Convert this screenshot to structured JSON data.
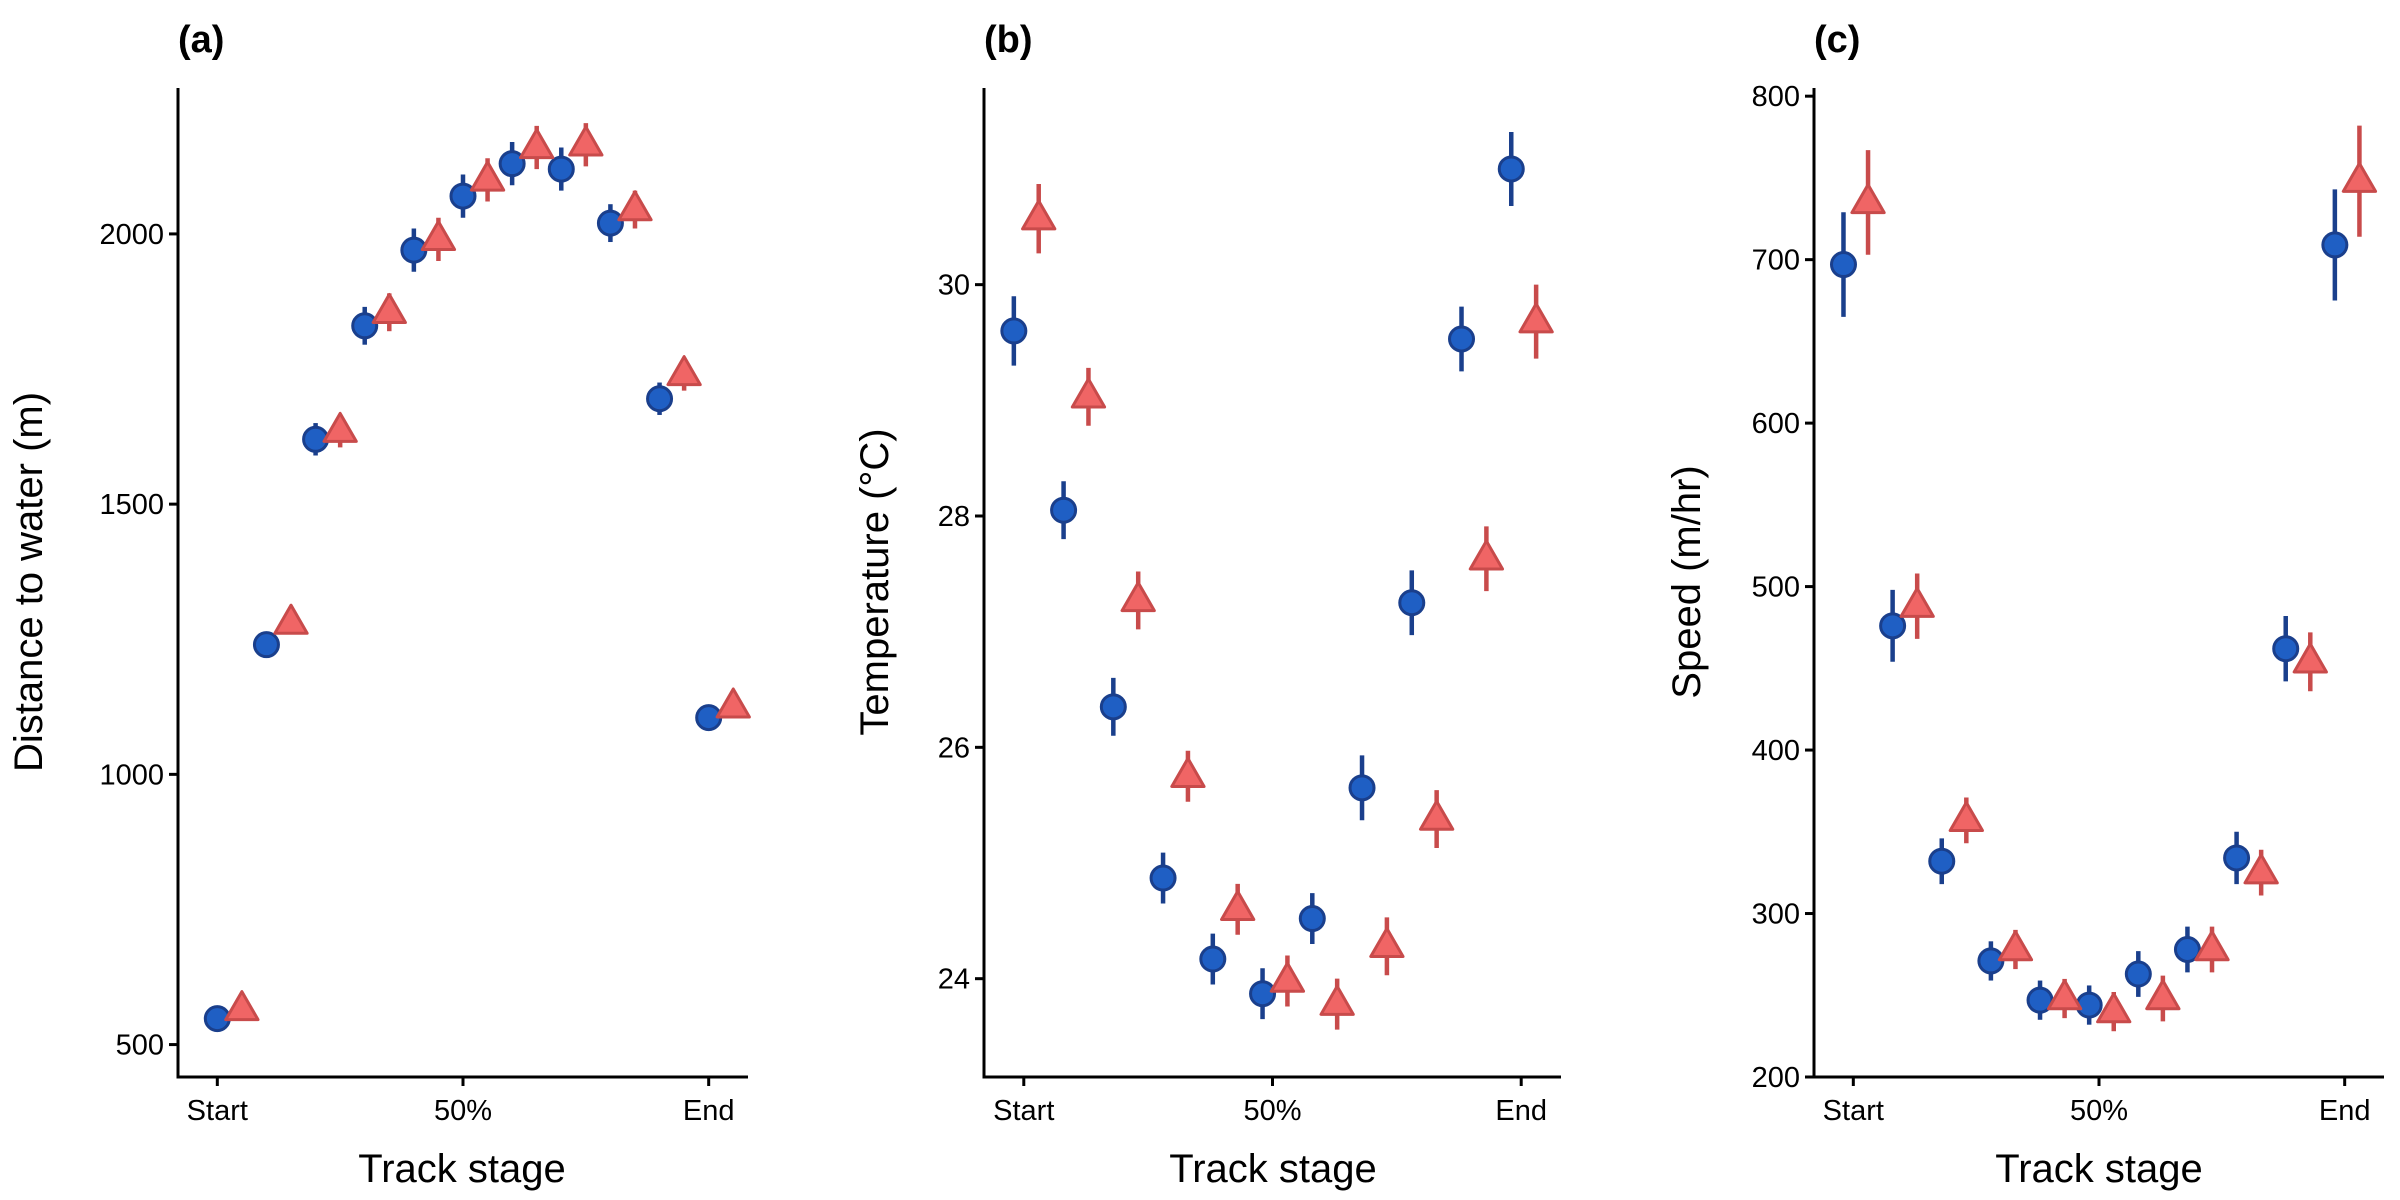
{
  "chart_data": [
    {
      "type": "scatter",
      "panel_label": "(a)",
      "xlabel": "Track stage",
      "ylabel": "Distance to water (m)",
      "x_tick_labels": [
        "Start",
        "50%",
        "End"
      ],
      "x_ticks": [
        0,
        50,
        100
      ],
      "xlim": [
        -8,
        108
      ],
      "ylim": [
        440,
        2270
      ],
      "y_ticks": [
        500,
        1000,
        1500,
        2000
      ],
      "grid": false,
      "legend": "none",
      "series": [
        {
          "marker": "circle",
          "color": "#1f5fc4",
          "edge": "#1a3f8c",
          "x": [
            0,
            10,
            20,
            30,
            40,
            50,
            60,
            70,
            80,
            90,
            100
          ],
          "y": [
            548,
            1240,
            1620,
            1830,
            1970,
            2070,
            2130,
            2120,
            2020,
            1695,
            1105
          ],
          "err": [
            15,
            18,
            30,
            35,
            40,
            40,
            40,
            40,
            35,
            30,
            20
          ]
        },
        {
          "marker": "triangle",
          "color": "#f06565",
          "edge": "#c84b4b",
          "x": [
            5,
            15,
            25,
            35,
            45,
            55,
            65,
            75,
            85,
            95,
            105
          ],
          "y": [
            565,
            1280,
            1635,
            1855,
            1990,
            2100,
            2160,
            2165,
            2045,
            1740,
            1125
          ],
          "err": [
            15,
            18,
            30,
            35,
            40,
            40,
            40,
            40,
            35,
            30,
            20
          ]
        }
      ]
    },
    {
      "type": "scatter",
      "panel_label": "(b)",
      "xlabel": "Track stage",
      "ylabel": "Temperature (°C)",
      "x_tick_labels": [
        "Start",
        "50%",
        "End"
      ],
      "x_ticks": [
        0,
        50,
        100
      ],
      "xlim": [
        -8,
        108
      ],
      "ylim": [
        23.15,
        31.7
      ],
      "y_ticks": [
        24,
        26,
        28,
        30
      ],
      "y_tick_labels": [
        "24",
        "26",
        "28",
        "30"
      ],
      "grid": false,
      "legend": "none",
      "series": [
        {
          "marker": "circle",
          "color": "#1f5fc4",
          "edge": "#1a3f8c",
          "x": [
            -2,
            8,
            18,
            28,
            38,
            48,
            58,
            68,
            78,
            88,
            98
          ],
          "y": [
            29.6,
            28.05,
            26.35,
            24.87,
            24.17,
            23.87,
            24.52,
            25.65,
            27.25,
            29.53,
            31.0
          ],
          "err": [
            0.3,
            0.25,
            0.25,
            0.22,
            0.22,
            0.22,
            0.22,
            0.28,
            0.28,
            0.28,
            0.32
          ]
        },
        {
          "marker": "triangle",
          "color": "#f06565",
          "edge": "#c84b4b",
          "x": [
            3,
            13,
            23,
            33,
            43,
            53,
            63,
            73,
            83,
            93,
            103
          ],
          "y": [
            30.57,
            29.03,
            27.27,
            25.75,
            24.6,
            23.98,
            23.78,
            24.28,
            25.38,
            27.63,
            29.68
          ],
          "err": [
            0.3,
            0.25,
            0.25,
            0.22,
            0.22,
            0.22,
            0.22,
            0.25,
            0.25,
            0.28,
            0.32
          ]
        }
      ]
    },
    {
      "type": "scatter",
      "panel_label": "(c)",
      "xlabel": "Track stage",
      "ylabel": "Speed (m/hr)",
      "x_tick_labels": [
        "Start",
        "50%",
        "End"
      ],
      "x_ticks": [
        0,
        50,
        100
      ],
      "xlim": [
        -8,
        108
      ],
      "ylim": [
        200,
        805
      ],
      "y_ticks": [
        200,
        300,
        400,
        500,
        600,
        700,
        800
      ],
      "grid": false,
      "legend": "none",
      "series": [
        {
          "marker": "circle",
          "color": "#1f5fc4",
          "edge": "#1a3f8c",
          "x": [
            -2,
            8,
            18,
            28,
            38,
            48,
            58,
            68,
            78,
            88,
            98
          ],
          "y": [
            697,
            476,
            332,
            271,
            247,
            244,
            263,
            278,
            334,
            462,
            709
          ],
          "err": [
            32,
            22,
            14,
            12,
            12,
            12,
            14,
            14,
            16,
            20,
            34
          ]
        },
        {
          "marker": "triangle",
          "color": "#f06565",
          "edge": "#c84b4b",
          "x": [
            3,
            13,
            23,
            33,
            43,
            53,
            63,
            73,
            83,
            93,
            103
          ],
          "y": [
            735,
            488,
            357,
            278,
            248,
            240,
            248,
            278,
            325,
            454,
            748
          ],
          "err": [
            32,
            20,
            14,
            12,
            12,
            12,
            14,
            14,
            14,
            18,
            34
          ]
        }
      ]
    }
  ]
}
